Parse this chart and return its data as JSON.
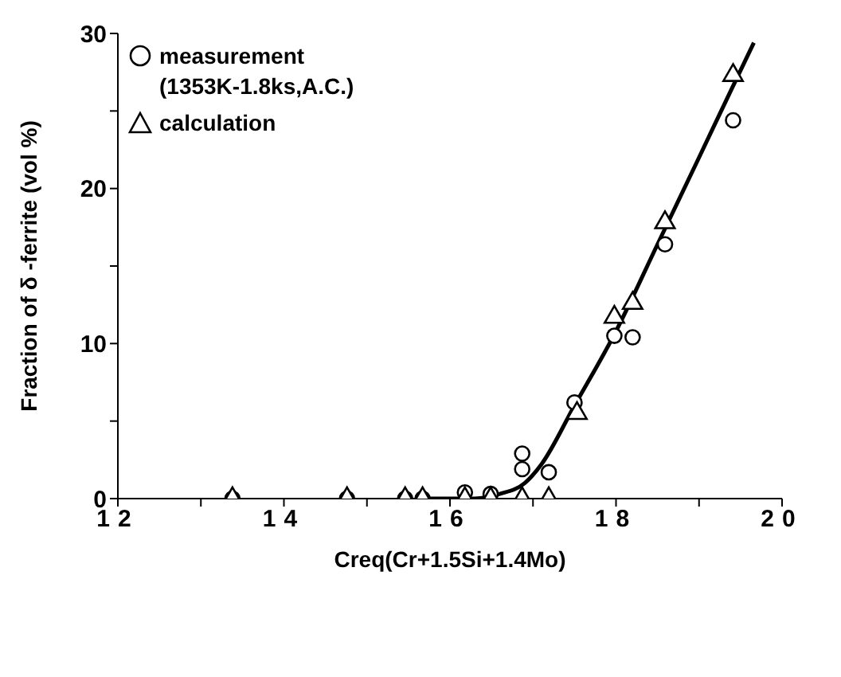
{
  "chart_data": {
    "type": "scatter",
    "xlabel": "Creq(Cr+1.5Si+1.4Mo)",
    "ylabel": "Fraction of δ -ferrite (vol %)",
    "xlim": [
      12,
      20
    ],
    "ylim": [
      0,
      30
    ],
    "xticks": [
      12,
      {
        "value": 13,
        "label": null
      },
      14,
      {
        "value": 15,
        "label": null
      },
      16,
      {
        "value": 17,
        "label": null
      },
      18,
      {
        "value": 19,
        "label": null
      },
      20
    ],
    "yticks": [
      0,
      {
        "value": 5,
        "label": null
      },
      10,
      {
        "value": 15,
        "label": null
      },
      20,
      {
        "value": 25,
        "label": null
      },
      30
    ],
    "grid": false,
    "legend": "top left",
    "series": [
      {
        "name": "measurement (1353K-1.8ks,A.C.)",
        "marker": "circle",
        "color": "#000000",
        "x": [
          13.38,
          14.76,
          15.46,
          15.67,
          16.18,
          16.49,
          16.87,
          16.87,
          17.19,
          17.5,
          17.98,
          18.2,
          18.59,
          19.41
        ],
        "values": [
          0,
          0,
          0,
          0,
          0.4,
          0.3,
          2.9,
          1.9,
          1.7,
          6.2,
          10.5,
          10.4,
          16.4,
          24.4
        ]
      },
      {
        "name": "calculation",
        "marker": "triangle",
        "color": "#000000",
        "x": [
          13.38,
          14.76,
          15.46,
          15.67,
          16.18,
          16.49,
          16.87,
          17.19,
          17.53,
          17.98,
          18.2,
          18.59,
          19.41
        ],
        "values": [
          0,
          0,
          0,
          0,
          0,
          0,
          0,
          0,
          5.5,
          11.7,
          12.6,
          17.8,
          27.3
        ]
      },
      {
        "type": "line",
        "marker": "none",
        "color": "#000000",
        "x": [
          15.7,
          16.3,
          16.6,
          16.9,
          17.1,
          17.5,
          18,
          18.5,
          19,
          19.4,
          19.66
        ],
        "values": [
          0,
          0,
          0.3,
          1,
          2.2,
          6,
          10.8,
          16.4,
          22,
          26.5,
          29.4
        ]
      }
    ]
  }
}
